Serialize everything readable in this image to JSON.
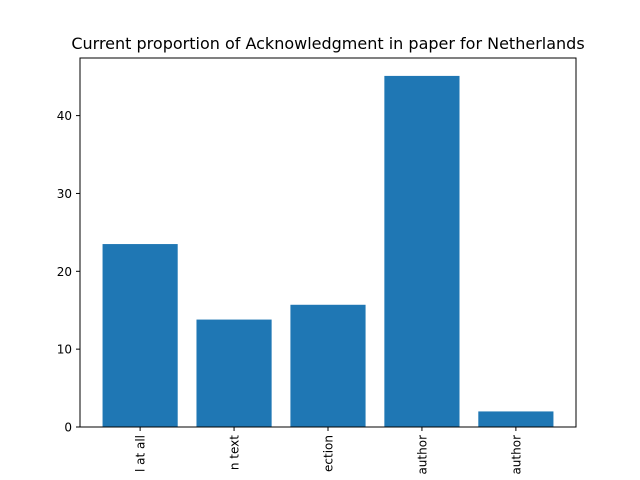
{
  "chart_data": {
    "type": "bar",
    "title": "Current proportion of Acknowledgment in paper for Netherlands",
    "xlabel": "",
    "ylabel": "",
    "categories": [
      "l at all",
      "n text",
      "ection",
      "author",
      "author"
    ],
    "values": [
      23.5,
      13.8,
      15.7,
      45.1,
      2.0
    ],
    "ylim": [
      0,
      47.4
    ],
    "yticks": [
      0,
      10,
      20,
      30,
      40
    ],
    "bar_color": "#1f77b4",
    "grid": false,
    "legend": "none",
    "xtick_rotation": "vertical"
  }
}
